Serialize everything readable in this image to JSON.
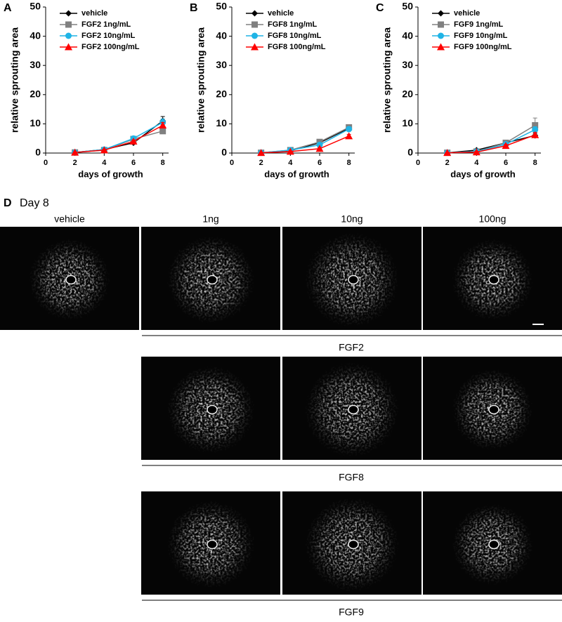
{
  "chart_data": [
    {
      "type": "line",
      "label": "A",
      "ylabel": "relative sprouting area",
      "xlabel": "days of growth",
      "x": [
        2,
        4,
        6,
        8
      ],
      "xlim": [
        0,
        8.4
      ],
      "xticks": [
        0,
        2,
        4,
        6,
        8
      ],
      "ylim": [
        0,
        50
      ],
      "yticks": [
        0,
        10,
        20,
        30,
        40,
        50
      ],
      "series": [
        {
          "name": "vehicle",
          "color": "#000000",
          "marker": "diamond",
          "values": [
            0.2,
            1.2,
            3.5,
            11
          ],
          "errors": [
            0.2,
            0.3,
            0.5,
            1.5
          ]
        },
        {
          "name": "FGF2 1ng/mL",
          "color": "#808080",
          "marker": "square",
          "values": [
            0.2,
            1.0,
            4.8,
            7.5
          ],
          "errors": [
            0.2,
            0.3,
            0.6,
            0.8
          ]
        },
        {
          "name": "FGF2 10ng/mL",
          "color": "#1fb4e6",
          "marker": "circle",
          "values": [
            0.2,
            1.2,
            5.0,
            10.5
          ],
          "errors": [
            0.2,
            0.3,
            0.6,
            1.2
          ]
        },
        {
          "name": "FGF2 100ng/mL",
          "color": "#ff0000",
          "marker": "triangle",
          "values": [
            0.2,
            1.0,
            4.0,
            9.5
          ],
          "errors": [
            0.2,
            0.3,
            0.5,
            1.0
          ]
        }
      ]
    },
    {
      "type": "line",
      "label": "B",
      "ylabel": "relative sprouting area",
      "xlabel": "days of growth",
      "x": [
        2,
        4,
        6,
        8
      ],
      "xlim": [
        0,
        8.4
      ],
      "xticks": [
        0,
        2,
        4,
        6,
        8
      ],
      "ylim": [
        0,
        50
      ],
      "yticks": [
        0,
        10,
        20,
        30,
        40,
        50
      ],
      "series": [
        {
          "name": "vehicle",
          "color": "#000000",
          "marker": "diamond",
          "values": [
            0.1,
            0.8,
            3.5,
            8.5
          ],
          "errors": [
            0.1,
            0.2,
            0.4,
            0.8
          ]
        },
        {
          "name": "FGF8 1ng/mL",
          "color": "#808080",
          "marker": "square",
          "values": [
            0.1,
            1.0,
            3.8,
            8.8
          ],
          "errors": [
            0.1,
            0.2,
            0.4,
            0.8
          ]
        },
        {
          "name": "FGF8 10ng/mL",
          "color": "#1fb4e6",
          "marker": "circle",
          "values": [
            0.1,
            1.0,
            2.8,
            8.2
          ],
          "errors": [
            0.1,
            0.2,
            0.4,
            0.8
          ]
        },
        {
          "name": "FGF8 100ng/mL",
          "color": "#ff0000",
          "marker": "triangle",
          "values": [
            0.1,
            0.5,
            1.5,
            5.8
          ],
          "errors": [
            0.1,
            0.2,
            0.3,
            0.6
          ]
        }
      ]
    },
    {
      "type": "line",
      "label": "C",
      "ylabel": "relative sprouting area",
      "xlabel": "days of growth",
      "x": [
        2,
        4,
        6,
        8
      ],
      "xlim": [
        0,
        8.4
      ],
      "xticks": [
        0,
        2,
        4,
        6,
        8
      ],
      "ylim": [
        0,
        50
      ],
      "yticks": [
        0,
        10,
        20,
        30,
        40,
        50
      ],
      "series": [
        {
          "name": "vehicle",
          "color": "#000000",
          "marker": "diamond",
          "values": [
            0.1,
            1.0,
            3.5,
            6.0
          ],
          "errors": [
            0.1,
            0.2,
            0.4,
            0.8
          ]
        },
        {
          "name": "FGF9 1ng/mL",
          "color": "#808080",
          "marker": "square",
          "values": [
            0.1,
            0.5,
            3.5,
            9.5
          ],
          "errors": [
            0.1,
            0.2,
            0.5,
            2.5
          ]
        },
        {
          "name": "FGF9 10ng/mL",
          "color": "#1fb4e6",
          "marker": "circle",
          "values": [
            0.1,
            0.5,
            3.0,
            8.0
          ],
          "errors": [
            0.1,
            0.2,
            0.4,
            1.0
          ]
        },
        {
          "name": "FGF9 100ng/mL",
          "color": "#ff0000",
          "marker": "triangle",
          "values": [
            0.1,
            0.3,
            2.5,
            6.2
          ],
          "errors": [
            0.1,
            0.2,
            0.4,
            0.8
          ]
        }
      ]
    }
  ],
  "panel_d": {
    "label": "D",
    "title": "Day 8",
    "columns": [
      "vehicle",
      "1ng",
      "10ng",
      "100ng"
    ],
    "rows": [
      "FGF2",
      "FGF8",
      "FGF9"
    ]
  }
}
